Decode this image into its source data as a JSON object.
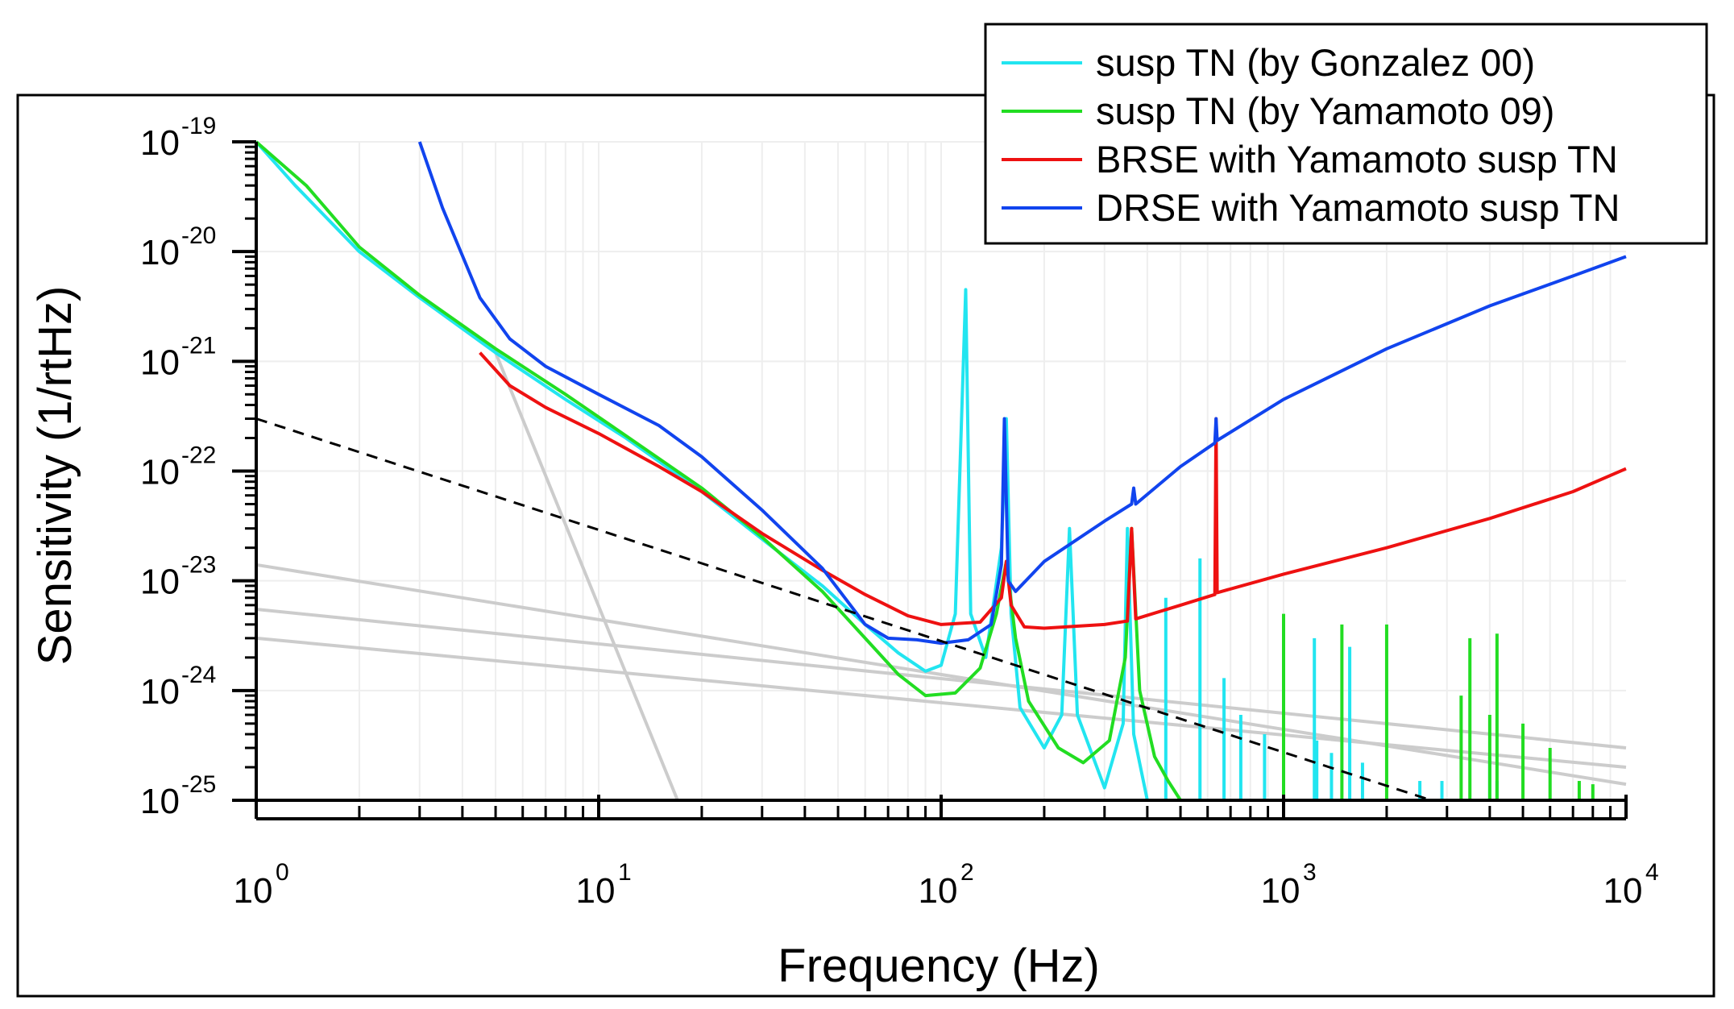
{
  "chart_data": {
    "type": "line",
    "xlabel": "Frequency (Hz)",
    "ylabel": "Sensitivity (1/rtHz)",
    "xscale": "log",
    "yscale": "log",
    "xlim": [
      1,
      10000
    ],
    "ylim": [
      1e-25,
      1e-19
    ],
    "x_ticks": [
      {
        "mant": "10",
        "exp": "0",
        "value": 1
      },
      {
        "mant": "10",
        "exp": "1",
        "value": 10
      },
      {
        "mant": "10",
        "exp": "2",
        "value": 100
      },
      {
        "mant": "10",
        "exp": "3",
        "value": 1000
      },
      {
        "mant": "10",
        "exp": "4",
        "value": 10000
      }
    ],
    "y_ticks": [
      {
        "mant": "10",
        "exp": "-19",
        "value": 1e-19
      },
      {
        "mant": "10",
        "exp": "-20",
        "value": 1e-20
      },
      {
        "mant": "10",
        "exp": "-21",
        "value": 1e-21
      },
      {
        "mant": "10",
        "exp": "-22",
        "value": 1e-22
      },
      {
        "mant": "10",
        "exp": "-23",
        "value": 1e-23
      },
      {
        "mant": "10",
        "exp": "-24",
        "value": 1e-24
      },
      {
        "mant": "10",
        "exp": "-25",
        "value": 1e-25
      }
    ],
    "legend_position": "top-right, above plot frame",
    "legend": [
      {
        "label": "susp TN (by Gonzalez 00)",
        "color": "#22e5f0"
      },
      {
        "label": "susp TN (by Yamamoto 09)",
        "color": "#22dd22"
      },
      {
        "label": "BRSE with Yamamoto susp TN",
        "color": "#ee1111"
      },
      {
        "label": "DRSE with Yamamoto susp TN",
        "color": "#1144ee"
      }
    ],
    "series": [
      {
        "name": "susp TN (by Gonzalez 00)",
        "color": "#22e5f0",
        "width": 4,
        "points": [
          [
            1,
            1e-19
          ],
          [
            1.3,
            4e-20
          ],
          [
            2,
            1e-20
          ],
          [
            3,
            3.8e-21
          ],
          [
            5,
            1.2e-21
          ],
          [
            8,
            4.5e-22
          ],
          [
            12,
            2e-22
          ],
          [
            20,
            6.5e-23
          ],
          [
            30,
            2.4e-23
          ],
          [
            45,
            9e-24
          ],
          [
            60,
            4e-24
          ],
          [
            75,
            2.2e-24
          ],
          [
            90,
            1.5e-24
          ],
          [
            100,
            1.7e-24
          ],
          [
            110,
            5e-24
          ],
          [
            118,
            4.5e-21
          ],
          [
            122,
            5e-24
          ],
          [
            135,
            2e-24
          ],
          [
            150,
            2e-23
          ],
          [
            155,
            3e-22
          ],
          [
            160,
            5e-24
          ],
          [
            170,
            7e-25
          ],
          [
            200,
            3e-25
          ],
          [
            225,
            6e-25
          ],
          [
            237,
            3e-23
          ],
          [
            250,
            6e-25
          ],
          [
            300,
            1.3e-25
          ],
          [
            340,
            5e-25
          ],
          [
            350,
            3e-23
          ],
          [
            365,
            4e-25
          ],
          [
            400,
            1e-25
          ]
        ]
      },
      {
        "name": "susp TN (by Yamamoto 09)",
        "color": "#22dd22",
        "width": 4,
        "points": [
          [
            1,
            1e-19
          ],
          [
            1.4,
            4e-20
          ],
          [
            2,
            1.1e-20
          ],
          [
            3,
            4e-21
          ],
          [
            5,
            1.3e-21
          ],
          [
            8,
            5e-22
          ],
          [
            12,
            2.1e-22
          ],
          [
            20,
            7e-23
          ],
          [
            30,
            2.5e-23
          ],
          [
            45,
            8e-24
          ],
          [
            60,
            3e-24
          ],
          [
            75,
            1.4e-24
          ],
          [
            90,
            9e-25
          ],
          [
            110,
            9.5e-25
          ],
          [
            130,
            1.6e-24
          ],
          [
            145,
            5e-24
          ],
          [
            155,
            1.5e-23
          ],
          [
            165,
            3e-24
          ],
          [
            180,
            8e-25
          ],
          [
            220,
            3e-25
          ],
          [
            260,
            2.2e-25
          ],
          [
            310,
            3.5e-25
          ],
          [
            345,
            2e-24
          ],
          [
            360,
            3e-23
          ],
          [
            380,
            1e-24
          ],
          [
            420,
            2.5e-25
          ],
          [
            460,
            1.5e-25
          ],
          [
            500,
            1e-25
          ]
        ]
      },
      {
        "name": "BRSE with Yamamoto susp TN",
        "color": "#ee1111",
        "width": 4,
        "points": [
          [
            4.5,
            1.2e-21
          ],
          [
            5.5,
            6e-22
          ],
          [
            7,
            3.8e-22
          ],
          [
            10,
            2.2e-22
          ],
          [
            15,
            1.1e-22
          ],
          [
            20,
            6.5e-23
          ],
          [
            30,
            2.7e-23
          ],
          [
            45,
            1.25e-23
          ],
          [
            60,
            7.5e-24
          ],
          [
            80,
            4.8e-24
          ],
          [
            100,
            4e-24
          ],
          [
            130,
            4.2e-24
          ],
          [
            150,
            7e-24
          ],
          [
            155,
            1.5e-23
          ],
          [
            160,
            6e-24
          ],
          [
            175,
            3.8e-24
          ],
          [
            200,
            3.7e-24
          ],
          [
            300,
            4e-24
          ],
          [
            350,
            4.3e-24
          ],
          [
            360,
            3e-23
          ],
          [
            370,
            4.5e-24
          ],
          [
            500,
            6e-24
          ],
          [
            630,
            7.5e-24
          ],
          [
            635,
            3e-22
          ],
          [
            640,
            7.8e-24
          ],
          [
            1000,
            1.15e-23
          ],
          [
            2000,
            2e-23
          ],
          [
            4000,
            3.7e-23
          ],
          [
            7000,
            6.5e-23
          ],
          [
            10000,
            1.05e-22
          ]
        ]
      },
      {
        "name": "DRSE with Yamamoto susp TN",
        "color": "#1144ee",
        "width": 4,
        "points": [
          [
            3,
            1e-19
          ],
          [
            3.5,
            2.5e-20
          ],
          [
            4.5,
            3.8e-21
          ],
          [
            5.5,
            1.6e-21
          ],
          [
            7,
            9e-22
          ],
          [
            10,
            5e-22
          ],
          [
            15,
            2.6e-22
          ],
          [
            20,
            1.35e-22
          ],
          [
            30,
            4.4e-23
          ],
          [
            45,
            1.3e-23
          ],
          [
            60,
            4e-24
          ],
          [
            70,
            3e-24
          ],
          [
            85,
            2.9e-24
          ],
          [
            100,
            2.7e-24
          ],
          [
            120,
            2.9e-24
          ],
          [
            140,
            4e-24
          ],
          [
            150,
            1.4e-23
          ],
          [
            153,
            3e-22
          ],
          [
            157,
            1e-23
          ],
          [
            165,
            8e-24
          ],
          [
            200,
            1.5e-23
          ],
          [
            300,
            3.5e-23
          ],
          [
            360,
            5e-23
          ],
          [
            365,
            7e-23
          ],
          [
            370,
            5e-23
          ],
          [
            500,
            1.1e-22
          ],
          [
            630,
            1.8e-22
          ],
          [
            635,
            3e-22
          ],
          [
            640,
            1.9e-22
          ],
          [
            1000,
            4.5e-22
          ],
          [
            2000,
            1.3e-21
          ],
          [
            4000,
            3.2e-21
          ],
          [
            7000,
            6e-21
          ],
          [
            10000,
            9e-21
          ]
        ]
      },
      {
        "name": "",
        "color": "#000000",
        "width": 3,
        "dash": "14,10",
        "points": [
          [
            1,
            3e-22
          ],
          [
            2700,
            1e-25
          ]
        ]
      }
    ],
    "spikes": [
      {
        "color": "#22e5f0",
        "peaks": [
          [
            453,
            7e-24
          ],
          [
            570,
            1.6e-23
          ],
          [
            670,
            1.3e-24
          ],
          [
            750,
            6e-25
          ],
          [
            880,
            4e-25
          ],
          [
            1000,
            3e-25
          ],
          [
            1230,
            3e-24
          ],
          [
            1250,
            3.5e-25
          ],
          [
            1380,
            2.7e-25
          ],
          [
            1560,
            2.5e-24
          ],
          [
            1700,
            2.2e-25
          ],
          [
            2500,
            1.5e-25
          ],
          [
            2900,
            1.5e-25
          ],
          [
            4000,
            2.5e-25
          ],
          [
            4200,
            1.5e-25
          ]
        ]
      },
      {
        "color": "#22dd22",
        "peaks": [
          [
            1000,
            5e-24
          ],
          [
            1480,
            4e-24
          ],
          [
            2000,
            4e-24
          ],
          [
            3500,
            3e-24
          ],
          [
            4200,
            3.3e-24
          ],
          [
            3300,
            9e-25
          ],
          [
            4000,
            6e-25
          ],
          [
            5000,
            5e-25
          ],
          [
            6000,
            3e-25
          ],
          [
            7300,
            1.5e-25
          ],
          [
            8000,
            1.4e-25
          ]
        ]
      }
    ],
    "gray_lines": [
      {
        "color": "#cccccc",
        "points": [
          [
            5,
            1.2e-21
          ],
          [
            17,
            1e-25
          ]
        ]
      },
      {
        "color": "#cccccc",
        "points": [
          [
            1,
            1.4e-23
          ],
          [
            10000,
            1.4e-25
          ]
        ]
      },
      {
        "color": "#cccccc",
        "points": [
          [
            1,
            5.5e-24
          ],
          [
            10000,
            3e-25
          ]
        ]
      },
      {
        "color": "#cccccc",
        "points": [
          [
            1,
            3e-24
          ],
          [
            10000,
            2e-25
          ]
        ]
      }
    ]
  }
}
